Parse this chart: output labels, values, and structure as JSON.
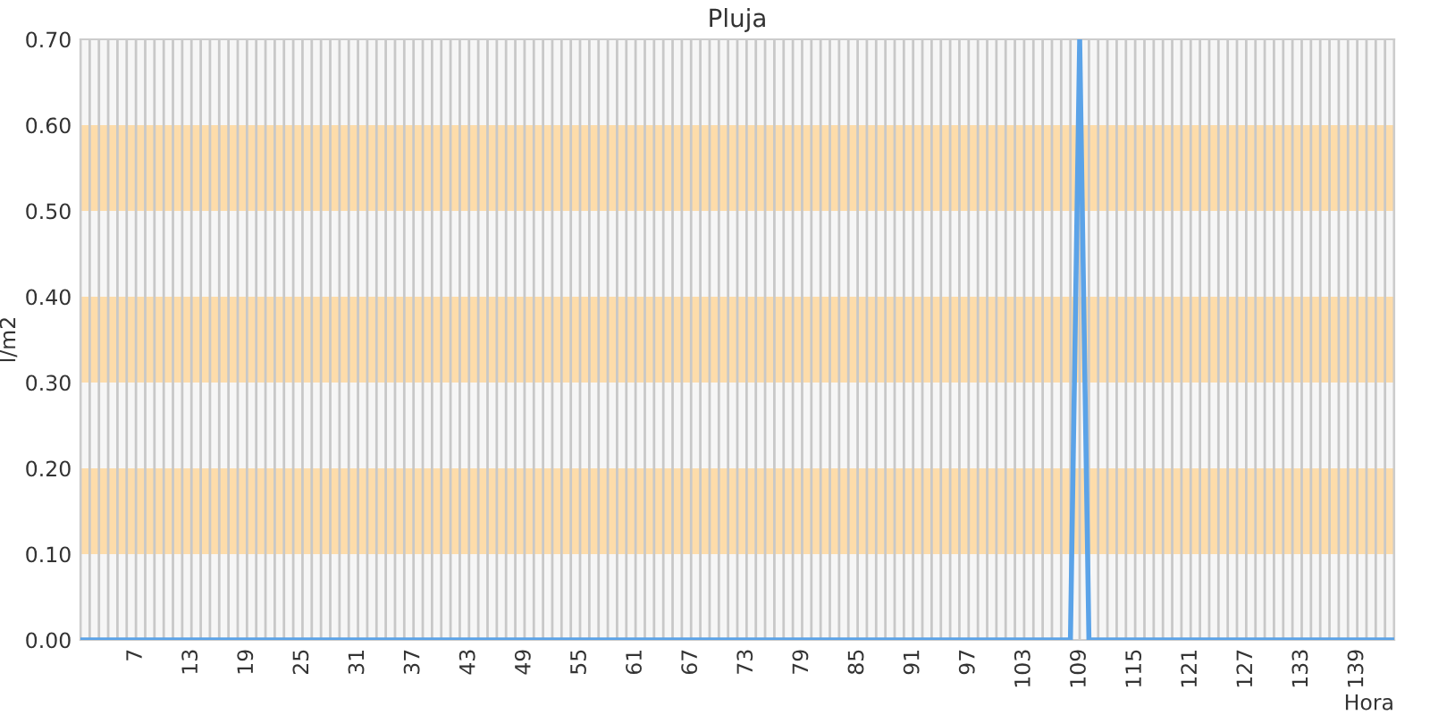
{
  "chart_data": {
    "type": "line",
    "title": "Pluja",
    "xlabel": "Hora",
    "ylabel": "l/m2",
    "categories": [
      null,
      null,
      null,
      null,
      null,
      null,
      "7",
      null,
      null,
      null,
      null,
      null,
      "13",
      null,
      null,
      null,
      null,
      null,
      "19",
      null,
      null,
      null,
      null,
      null,
      "25",
      null,
      null,
      null,
      null,
      null,
      "31",
      null,
      null,
      null,
      null,
      null,
      "37",
      null,
      null,
      null,
      null,
      null,
      "43",
      null,
      null,
      null,
      null,
      null,
      "49",
      null,
      null,
      null,
      null,
      null,
      "55",
      null,
      null,
      null,
      null,
      null,
      "61",
      null,
      null,
      null,
      null,
      null,
      "67",
      null,
      null,
      null,
      null,
      null,
      "73",
      null,
      null,
      null,
      null,
      null,
      "79",
      null,
      null,
      null,
      null,
      null,
      "85",
      null,
      null,
      null,
      null,
      null,
      "91",
      null,
      null,
      null,
      null,
      null,
      "97",
      null,
      null,
      null,
      null,
      null,
      "103",
      null,
      null,
      null,
      null,
      null,
      "109",
      null,
      null,
      null,
      null,
      null,
      "115",
      null,
      null,
      null,
      null,
      null,
      "121",
      null,
      null,
      null,
      null,
      null,
      "127",
      null,
      null,
      null,
      null,
      null,
      "133",
      null,
      null,
      null,
      null,
      null,
      "139",
      null,
      null,
      null,
      null
    ],
    "series": [
      {
        "color": "#5ba3e8",
        "values": [
          0,
          0,
          0,
          0,
          0,
          0,
          0,
          0,
          0,
          0,
          0,
          0,
          0,
          0,
          0,
          0,
          0,
          0,
          0,
          0,
          0,
          0,
          0,
          0,
          0,
          0,
          0,
          0,
          0,
          0,
          0,
          0,
          0,
          0,
          0,
          0,
          0,
          0,
          0,
          0,
          0,
          0,
          0,
          0,
          0,
          0,
          0,
          0,
          0,
          0,
          0,
          0,
          0,
          0,
          0,
          0,
          0,
          0,
          0,
          0,
          0,
          0,
          0,
          0,
          0,
          0,
          0,
          0,
          0,
          0,
          0,
          0,
          0,
          0,
          0,
          0,
          0,
          0,
          0,
          0,
          0,
          0,
          0,
          0,
          0,
          0,
          0,
          0,
          0,
          0,
          0,
          0,
          0,
          0,
          0,
          0,
          0,
          0,
          0,
          0,
          0,
          0,
          0,
          0,
          0,
          0,
          0,
          0,
          0.7,
          0,
          0,
          0,
          0,
          0,
          0,
          0,
          0,
          0,
          0,
          0,
          0,
          0,
          0,
          0,
          0,
          0,
          0,
          0,
          0,
          0,
          0,
          0,
          0,
          0,
          0,
          0,
          0,
          0,
          0,
          0,
          0,
          0,
          0
        ]
      }
    ],
    "ylim": [
      0,
      0.7
    ],
    "yticks": [
      {
        "value": 0,
        "label": "0.00"
      },
      {
        "value": 0.1,
        "label": "0.10"
      },
      {
        "value": 0.2,
        "label": "0.20"
      },
      {
        "value": 0.3,
        "label": "0.30"
      },
      {
        "value": 0.4,
        "label": "0.40"
      },
      {
        "value": 0.5,
        "label": "0.50"
      },
      {
        "value": 0.6,
        "label": "0.60"
      },
      {
        "value": 0.7,
        "label": "0.70"
      }
    ],
    "bands": [
      {
        "axis": "y",
        "from": 0.1,
        "to": 0.2,
        "color": "#fddcaa"
      },
      {
        "axis": "y",
        "from": 0.3,
        "to": 0.4,
        "color": "#fddcaa"
      },
      {
        "axis": "y",
        "from": 0.5,
        "to": 0.6,
        "color": "#fddcaa"
      }
    ],
    "grid": "x",
    "marker": "none",
    "line_style": "solid"
  }
}
